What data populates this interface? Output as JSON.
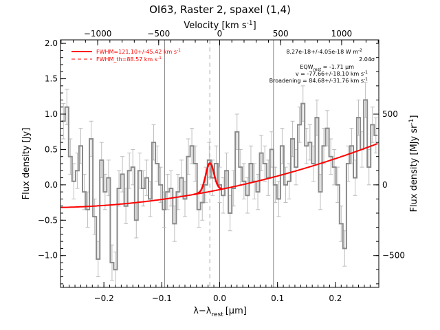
{
  "chart_data": {
    "type": "line",
    "title": "OI63, Raster 2, spaxel (1,4)",
    "xlabel": "λ−λ",
    "xlabel_sub": "rest",
    "xlabel_unit": "[μm]",
    "ylabel": "Flux density [Jy]",
    "top_axis_label": "Velocity [km s",
    "top_axis_label_sup": "-1",
    "top_axis_label_end": "]",
    "right_axis_label": "Flux density [MJy sr",
    "right_axis_label_sup": "-1",
    "right_axis_label_end": "]",
    "xlim": [
      -0.275,
      0.275
    ],
    "ylim": [
      -1.45,
      2.05
    ],
    "x_ticks": [
      -0.2,
      -0.1,
      0.0,
      0.1,
      0.2
    ],
    "x_tick_labels": [
      "−0.2",
      "−0.1",
      "0.0",
      "0.1",
      "0.2"
    ],
    "y_ticks": [
      -1.0,
      -0.5,
      0.0,
      0.5,
      1.0,
      1.5,
      2.0
    ],
    "y_tick_labels": [
      "−1.0",
      "−0.5",
      "0.0",
      "0.5",
      "1.0",
      "1.5",
      "2.0"
    ],
    "top_ticks_kms": [
      -1000,
      -500,
      0,
      500,
      1000
    ],
    "top_tick_labels": [
      "−1000",
      "−500",
      "0",
      "500",
      "1000"
    ],
    "right_ticks_y": [
      -1.0,
      0.0,
      1.0
    ],
    "right_tick_labels": [
      "−500",
      "0",
      "500"
    ],
    "vertical_lines": [
      -0.095,
      0.0,
      0.093
    ],
    "dashed_line_x": -0.017,
    "spectrum_x": [
      -0.27,
      -0.264,
      -0.258,
      -0.252,
      -0.246,
      -0.24,
      -0.234,
      -0.228,
      -0.222,
      -0.216,
      -0.21,
      -0.204,
      -0.198,
      -0.192,
      -0.186,
      -0.18,
      -0.174,
      -0.168,
      -0.162,
      -0.156,
      -0.15,
      -0.144,
      -0.138,
      -0.132,
      -0.126,
      -0.12,
      -0.114,
      -0.108,
      -0.102,
      -0.096,
      -0.09,
      -0.084,
      -0.078,
      -0.072,
      -0.066,
      -0.06,
      -0.054,
      -0.048,
      -0.042,
      -0.036,
      -0.03,
      -0.024,
      -0.018,
      -0.012,
      -0.006,
      0.0,
      0.006,
      0.012,
      0.018,
      0.024,
      0.03,
      0.036,
      0.042,
      0.048,
      0.054,
      0.06,
      0.066,
      0.072,
      0.078,
      0.084,
      0.09,
      0.096,
      0.102,
      0.108,
      0.114,
      0.12,
      0.126,
      0.132,
      0.138,
      0.144,
      0.15,
      0.156,
      0.162,
      0.168,
      0.174,
      0.18,
      0.186,
      0.192,
      0.198,
      0.204,
      0.21,
      0.216,
      0.222,
      0.228,
      0.234,
      0.24,
      0.246,
      0.252,
      0.258,
      0.264,
      0.27
    ],
    "spectrum_y": [
      0.9,
      1.1,
      0.4,
      0.05,
      0.2,
      0.55,
      -0.1,
      -0.35,
      0.65,
      -0.45,
      -1.05,
      0.35,
      -0.1,
      0.1,
      -1.1,
      -1.2,
      -0.05,
      0.15,
      -0.3,
      0.2,
      0.25,
      -0.5,
      0.2,
      -0.05,
      0.1,
      -0.2,
      0.6,
      0.3,
      0.0,
      -0.35,
      -0.1,
      -0.05,
      -0.55,
      -0.1,
      0.1,
      -0.2,
      0.4,
      0.55,
      0.3,
      -0.35,
      -0.25,
      0.0,
      0.35,
      0.1,
      0.3,
      0.0,
      -0.15,
      0.2,
      -0.4,
      -0.05,
      0.75,
      0.25,
      0.05,
      -0.15,
      0.3,
      0.05,
      -0.1,
      0.45,
      0.3,
      0.1,
      0.5,
      0.0,
      -0.2,
      0.55,
      0.0,
      0.05,
      0.65,
      0.25,
      0.85,
      1.15,
      0.55,
      0.6,
      0.3,
      0.95,
      -0.1,
      0.55,
      0.8,
      0.4,
      0.25,
      0.0,
      -0.55,
      -0.9,
      0.3,
      0.55,
      0.1,
      0.95,
      0.5,
      1.2,
      0.25,
      0.85,
      0.7
    ],
    "error_bar_size": 0.25,
    "fit_annotations": [
      "8.27e-18+/-4.05e-18 W m",
      "2.04σ",
      "EQW",
      "v = -77.66+/-18.10 km s",
      "Broadening = 84.68+/-31.76 km s"
    ],
    "legend": [
      {
        "label": "FWHM=121.10+/-45.42 km s",
        "style": "solid",
        "color": "#ff0000"
      },
      {
        "label": "FWHM_th=88.57 km s",
        "style": "dashed",
        "color": "#ff0000"
      }
    ],
    "colors": {
      "spectrum": "#8a8a8a",
      "errorbars": "#bdbdbd",
      "fit": "#ff0000",
      "axes": "#000000"
    }
  }
}
